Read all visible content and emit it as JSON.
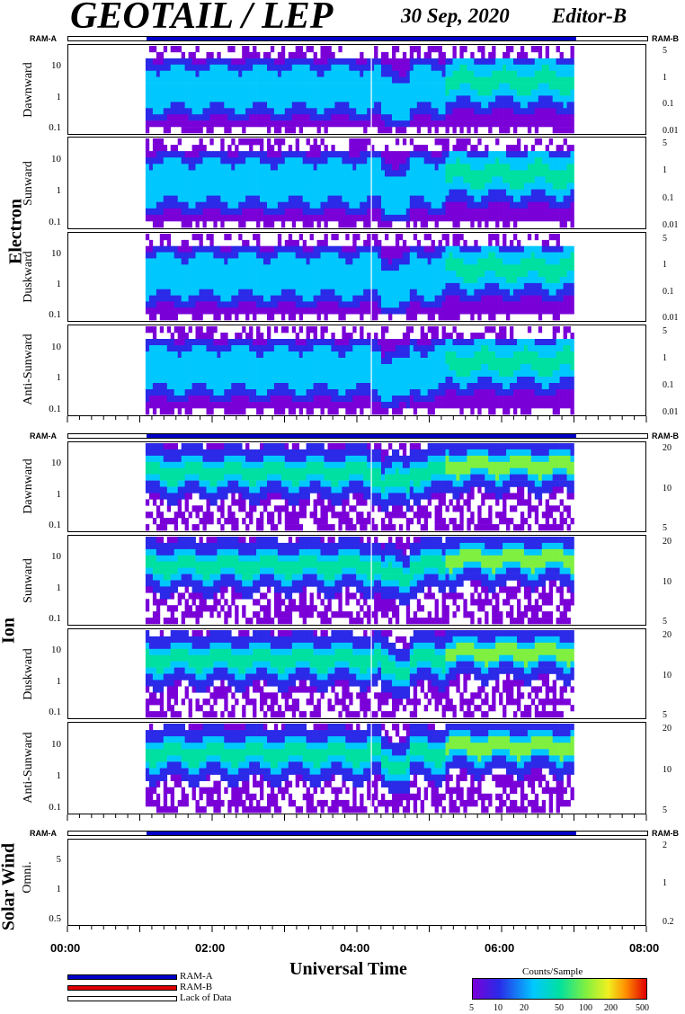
{
  "header": {
    "title": "GEOTAIL / LEP",
    "date": "30 Sep, 2020",
    "editor": "Editor-B"
  },
  "ram": {
    "left_label": "RAM-A",
    "right_label": "RAM-B"
  },
  "groups": [
    {
      "label": "Electron"
    },
    {
      "label": "Ion"
    },
    {
      "label": "Solar Wind"
    }
  ],
  "chart_data": {
    "type": "heatmap",
    "title": "GEOTAIL / LEP",
    "xlabel": "Universal Time",
    "xlim": [
      "00:00",
      "08:00"
    ],
    "x_ticks": [
      "00:00",
      "02:00",
      "04:00",
      "06:00",
      "08:00"
    ],
    "data_coverage_hours": [
      1.08,
      7.0
    ],
    "data_gap_hours": 4.2,
    "panels": [
      {
        "group": "Electron",
        "label": "Dawnward",
        "left_ticks": [
          "10",
          "1",
          "0.1"
        ],
        "right_ticks": [
          "5",
          "1",
          "0.1",
          "0.01"
        ]
      },
      {
        "group": "Electron",
        "label": "Sunward",
        "left_ticks": [
          "10",
          "1",
          "0.1"
        ],
        "right_ticks": [
          "5",
          "1",
          "0.1",
          "0.01"
        ]
      },
      {
        "group": "Electron",
        "label": "Duskward",
        "left_ticks": [
          "10",
          "1",
          "0.1"
        ],
        "right_ticks": [
          "5",
          "1",
          "0.1",
          "0.01"
        ]
      },
      {
        "group": "Electron",
        "label": "Anti-Sunward",
        "left_ticks": [
          "10",
          "1",
          "0.1"
        ],
        "right_ticks": [
          "5",
          "1",
          "0.1",
          "0.01"
        ]
      },
      {
        "group": "Ion",
        "label": "Dawnward",
        "left_ticks": [
          "10",
          "1",
          "0.1"
        ],
        "right_ticks": [
          "20",
          "10",
          "5"
        ]
      },
      {
        "group": "Ion",
        "label": "Sunward",
        "left_ticks": [
          "10",
          "1",
          "0.1"
        ],
        "right_ticks": [
          "20",
          "10",
          "5"
        ]
      },
      {
        "group": "Ion",
        "label": "Duskward",
        "left_ticks": [
          "10",
          "1",
          "0.1"
        ],
        "right_ticks": [
          "20",
          "10",
          "5"
        ]
      },
      {
        "group": "Ion",
        "label": "Anti-Sunward",
        "left_ticks": [
          "10",
          "1",
          "0.1"
        ],
        "right_ticks": [
          "20",
          "10",
          "5"
        ]
      },
      {
        "group": "Solar Wind",
        "label": "Omni.",
        "left_ticks": [
          "5",
          "1",
          "0.5"
        ],
        "right_ticks": [
          "2",
          "1",
          "0.2"
        ]
      }
    ],
    "colorbar": {
      "title": "Counts/Sample",
      "ticks": [
        "5",
        "10",
        "20",
        "50",
        "100",
        "200",
        "500"
      ],
      "colors": [
        "#7a00d8",
        "#2a2ae8",
        "#00c8ff",
        "#00e0a0",
        "#80f040",
        "#f0f020",
        "#ff9000",
        "#e00000"
      ]
    },
    "legend": [
      {
        "label": "RAM-A",
        "color": "#0000c8"
      },
      {
        "label": "RAM-B",
        "color": "#e00000"
      },
      {
        "label": "Lack of Data",
        "color": "#ffffff"
      }
    ]
  }
}
